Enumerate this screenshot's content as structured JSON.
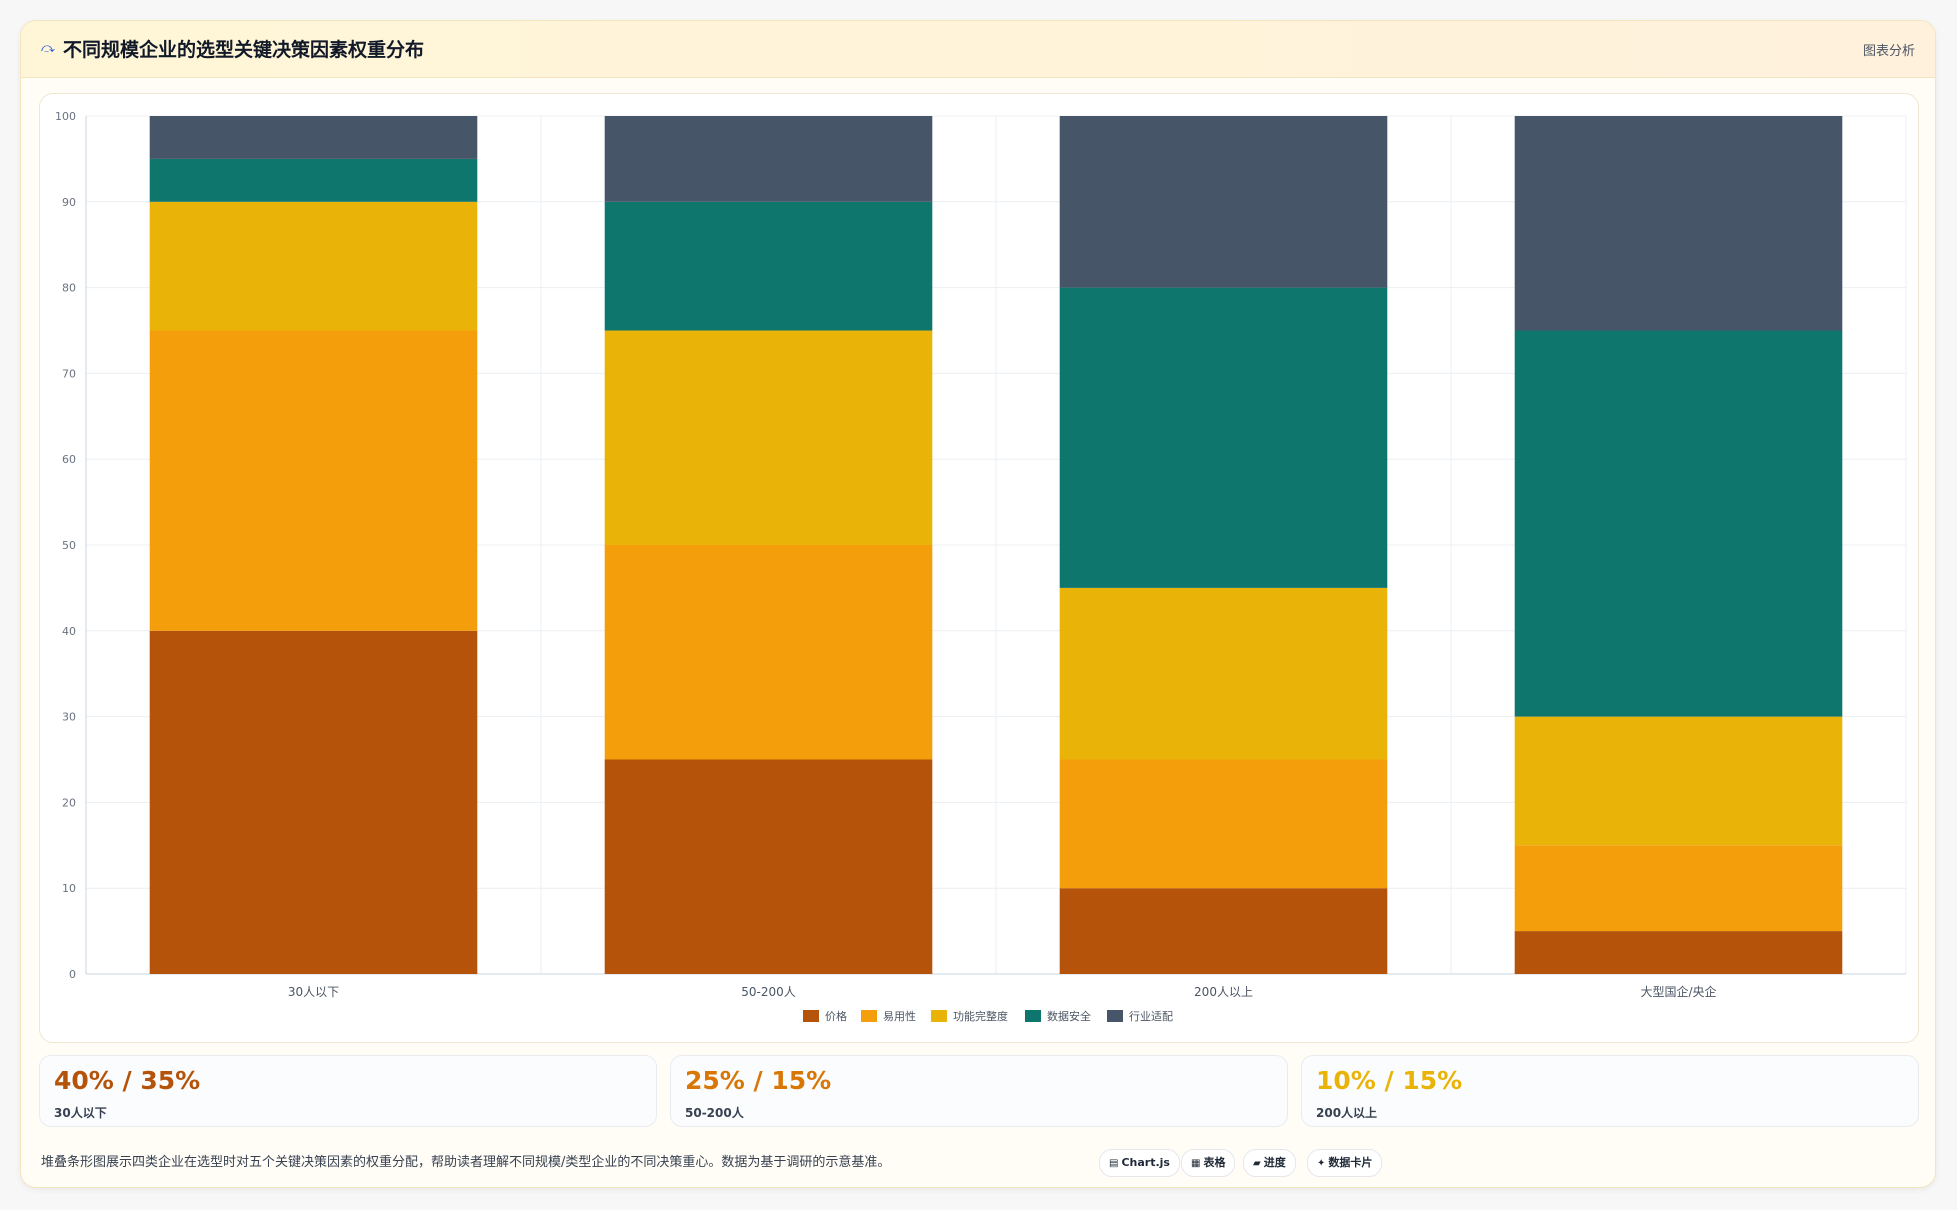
{
  "header": {
    "title": "不同规模企业的选型关键决策因素权重分布",
    "icon": "chart-line-icon",
    "tag": "图表分析"
  },
  "chart_data": {
    "type": "bar",
    "stacked": true,
    "categories": [
      "30人以下",
      "50-200人",
      "200人以上",
      "大型国企/央企"
    ],
    "series": [
      {
        "name": "价格",
        "color": "#b45309",
        "values": [
          40,
          25,
          10,
          5
        ]
      },
      {
        "name": "易用性",
        "color": "#f59e0b",
        "values": [
          35,
          25,
          15,
          10
        ]
      },
      {
        "name": "功能完整度",
        "color": "#eab308",
        "values": [
          15,
          25,
          20,
          15
        ]
      },
      {
        "name": "数据安全",
        "color": "#0f766e",
        "values": [
          5,
          15,
          35,
          45
        ]
      },
      {
        "name": "行业适配",
        "color": "#475569",
        "values": [
          5,
          10,
          20,
          25
        ]
      }
    ],
    "ylim": [
      0,
      100
    ],
    "yticks": [
      0,
      10,
      20,
      30,
      40,
      50,
      60,
      70,
      80,
      90,
      100
    ],
    "grid": true,
    "legend": "bottom"
  },
  "stats": [
    {
      "value": "40% / 35%",
      "label": "30人以下",
      "color": "#b45309"
    },
    {
      "value": "25% / 15%",
      "label": "50-200人",
      "color": "#d97706"
    },
    {
      "value": "10% / 15%",
      "label": "200人以上",
      "color": "#eab308"
    }
  ],
  "footer": {
    "note": "堆叠条形图展示四类企业在选型时对五个关键决策因素的权重分配，帮助读者理解不同规模/类型企业的不同决策重心。数据为基于调研的示意基准。",
    "pills": [
      {
        "icon": "chart-icon",
        "glyph": "▤",
        "label": "Chart.js"
      },
      {
        "icon": "table-icon",
        "glyph": "▦",
        "label": "表格"
      },
      {
        "icon": "progress-icon",
        "glyph": "▰",
        "label": "进度"
      },
      {
        "icon": "data-card-icon",
        "glyph": "✦",
        "label": "数据卡片"
      }
    ]
  }
}
